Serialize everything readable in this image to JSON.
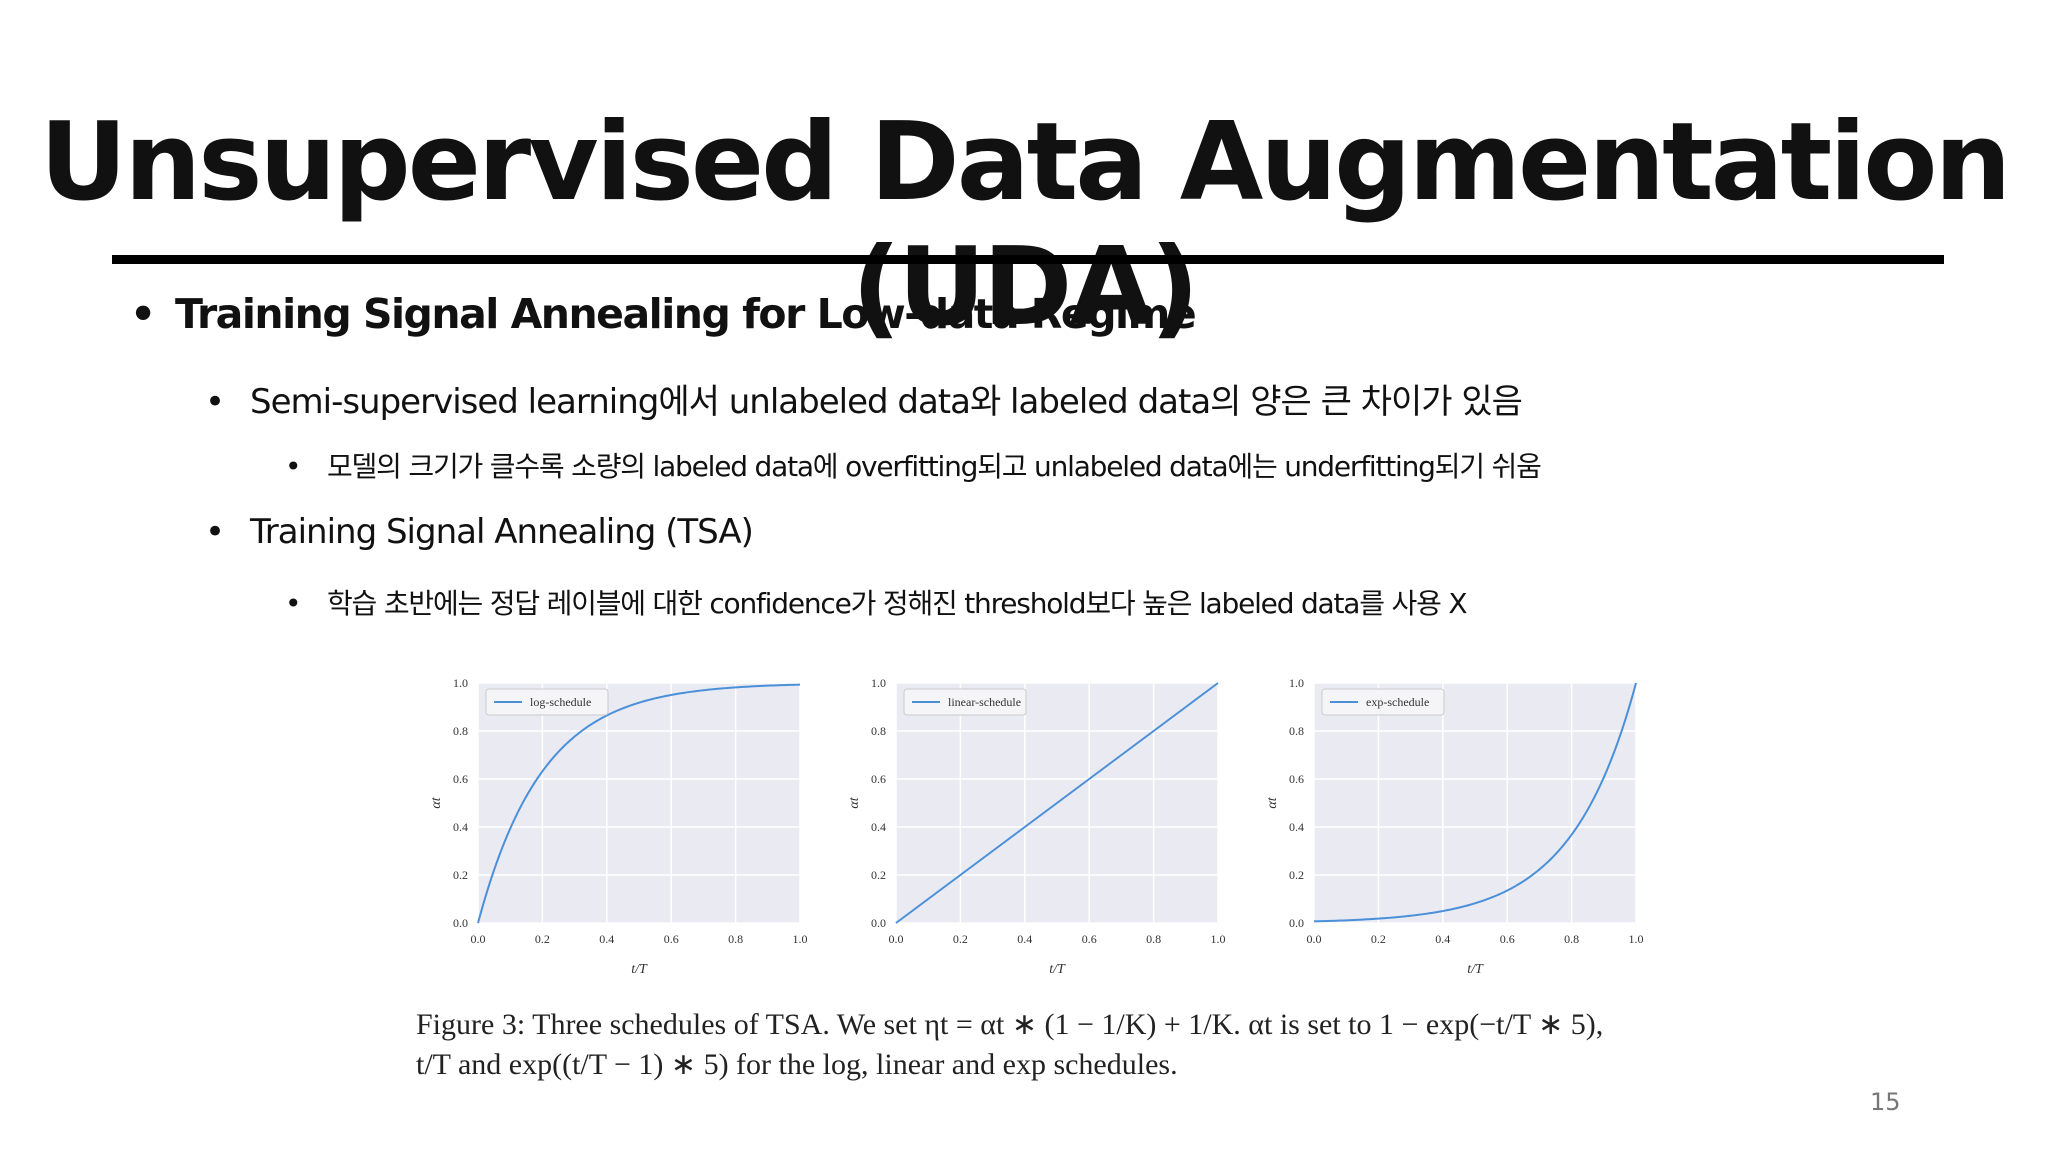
{
  "title": "Unsupervised Data Augmentation (UDA)",
  "bullets": {
    "l1": "Training Signal Annealing for Low-data Regime",
    "l2a": "Semi-supervised learning에서 unlabeled data와 labeled data의 양은 큰 차이가 있음",
    "l3a": "모델의 크기가 클수록 소량의 labeled data에 overfitting되고 unlabeled data에는 underfitting되기 쉬움",
    "l2b": "Training Signal Annealing (TSA)",
    "l3b": "학습 초반에는 정답 레이블에 대한 confidence가 정해진 threshold보다 높은 labeled data를 사용 X"
  },
  "bullet_symbol": "•",
  "caption": {
    "line1": "Figure 3: Three schedules of TSA. We set ηt = αt ∗ (1 − 1/K) + 1/K. αt is set to 1 − exp(−t/T ∗ 5),",
    "line2": "t/T and exp((t/T − 1) ∗ 5) for the log, linear and exp schedules."
  },
  "page_number": "15",
  "chart_data": [
    {
      "type": "line",
      "series": [
        {
          "name": "log-schedule",
          "function": "1 - exp(-x*5)",
          "x": [
            0,
            0.1,
            0.2,
            0.3,
            0.4,
            0.5,
            0.6,
            0.7,
            0.8,
            0.9,
            1.0
          ],
          "y": [
            0,
            0.393,
            0.632,
            0.777,
            0.865,
            0.918,
            0.95,
            0.97,
            0.982,
            0.989,
            0.993
          ]
        }
      ],
      "xlabel": "t/T",
      "ylabel": "αt",
      "xticks": [
        "0.0",
        "0.2",
        "0.4",
        "0.6",
        "0.8",
        "1.0"
      ],
      "yticks": [
        "0.0",
        "0.2",
        "0.4",
        "0.6",
        "0.8",
        "1.0"
      ],
      "xlim": [
        0,
        1
      ],
      "ylim": [
        0,
        1
      ],
      "grid": true,
      "legend": "top-left",
      "color": "#4a90d9"
    },
    {
      "type": "line",
      "series": [
        {
          "name": "linear-schedule",
          "function": "x",
          "x": [
            0,
            0.5,
            1.0
          ],
          "y": [
            0,
            0.5,
            1.0
          ]
        }
      ],
      "xlabel": "t/T",
      "ylabel": "αt",
      "xticks": [
        "0.0",
        "0.2",
        "0.4",
        "0.6",
        "0.8",
        "1.0"
      ],
      "yticks": [
        "0.0",
        "0.2",
        "0.4",
        "0.6",
        "0.8",
        "1.0"
      ],
      "xlim": [
        0,
        1
      ],
      "ylim": [
        0,
        1
      ],
      "grid": true,
      "legend": "top-left",
      "color": "#4a90d9"
    },
    {
      "type": "line",
      "series": [
        {
          "name": "exp-schedule",
          "function": "exp((x-1)*5)",
          "x": [
            0,
            0.1,
            0.2,
            0.3,
            0.4,
            0.5,
            0.6,
            0.7,
            0.8,
            0.9,
            1.0
          ],
          "y": [
            0.007,
            0.011,
            0.018,
            0.03,
            0.05,
            0.082,
            0.135,
            0.223,
            0.368,
            0.607,
            1.0
          ]
        }
      ],
      "xlabel": "t/T",
      "ylabel": "αt",
      "xticks": [
        "0.0",
        "0.2",
        "0.4",
        "0.6",
        "0.8",
        "1.0"
      ],
      "yticks": [
        "0.0",
        "0.2",
        "0.4",
        "0.6",
        "0.8",
        "1.0"
      ],
      "xlim": [
        0,
        1
      ],
      "ylim": [
        0,
        1
      ],
      "grid": true,
      "legend": "top-left",
      "color": "#4a90d9"
    }
  ]
}
